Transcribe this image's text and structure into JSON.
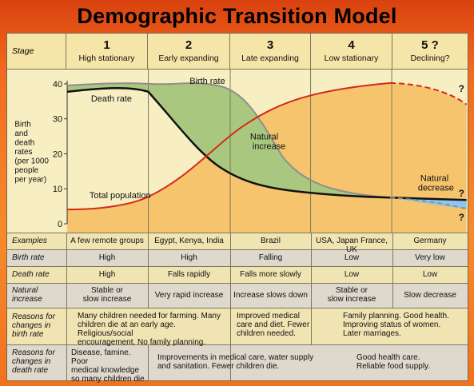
{
  "title": "Demographic Transition Model",
  "header": {
    "stage_label": "Stage",
    "stages": [
      {
        "num": "1",
        "name": "High stationary"
      },
      {
        "num": "2",
        "name": "Early expanding"
      },
      {
        "num": "3",
        "name": "Late expanding"
      },
      {
        "num": "4",
        "name": "Low stationary"
      },
      {
        "num": "5 ?",
        "name": "Declining?"
      }
    ]
  },
  "graph": {
    "ylabel": "Birth\nand\ndeath\nrates\n(per 1000\npeople\nper year)",
    "yticks": [
      "40",
      "30",
      "20",
      "10",
      "0"
    ],
    "labels": {
      "birth_rate": "Birth rate",
      "death_rate": "Death rate",
      "total_population": "Total population",
      "natural_increase": "Natural\nincrease",
      "natural_decrease": "Natural\ndecrease",
      "q1": "?",
      "q2": "?",
      "q3": "?"
    },
    "colors": {
      "birth_line": "#8f8f8f",
      "death_line": "#111111",
      "population_line": "#d42a1c",
      "increase_fill": "#a9c77f",
      "population_fill": "#f6c46c",
      "decrease_fill": "#8dc6ee"
    }
  },
  "table": {
    "examples": {
      "label": "Examples",
      "values": [
        "A few remote groups",
        "Egypt, Kenya, India",
        "Brazil",
        "USA, Japan France, UK",
        "Germany"
      ]
    },
    "birth_rate": {
      "label": "Birth rate",
      "values": [
        "High",
        "High",
        "Falling",
        "Low",
        "Very low"
      ]
    },
    "death_rate": {
      "label": "Death rate",
      "values": [
        "High",
        "Falls rapidly",
        "Falls more slowly",
        "Low",
        "Low"
      ]
    },
    "natural_increase": {
      "label": "Natural\nincrease",
      "values": [
        "Stable or\nslow increase",
        "Very rapid increase",
        "Increase slows down",
        "Stable or\nslow increase",
        "Slow decrease"
      ]
    },
    "reasons_birth": {
      "label": "Reasons for\nchanges in\nbirth rate",
      "values": [
        "Many children needed for farming. Many\nchildren die at an early age. Religious/social\nencouragement. No family planning.",
        "Improved medical\ncare and diet. Fewer\nchildren needed.",
        "Family planning. Good health.\nImproving status of women.\nLater marriages."
      ]
    },
    "reasons_death": {
      "label": "Reasons for\nchanges in\ndeath rate",
      "values": [
        "Disease, famine. Poor\nmedical knowledge\nso many children die.",
        "Improvements in medical care, water supply\nand sanitation. Fewer children die.",
        "Good health care.\nReliable food supply."
      ]
    }
  }
}
